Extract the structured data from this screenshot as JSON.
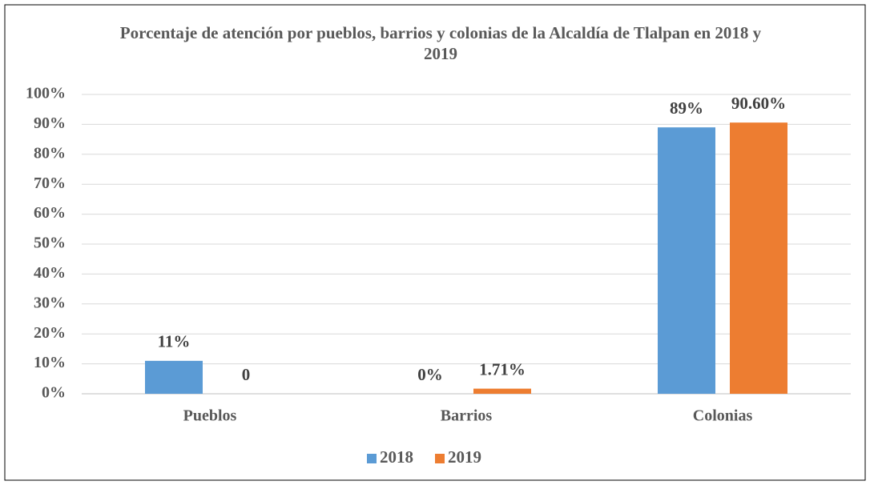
{
  "chart_data": {
    "type": "bar",
    "title": "Porcentaje de atención por pueblos, barrios y colonias de la Alcaldía de Tlalpan en 2018 y 2019",
    "categories": [
      "Pueblos",
      "Barrios",
      "Colonias"
    ],
    "series": [
      {
        "name": "2018",
        "color": "#5b9bd5",
        "values": [
          11,
          0,
          89
        ],
        "value_labels": [
          "11%",
          "0%",
          "89%"
        ]
      },
      {
        "name": "2019",
        "color": "#ed7d31",
        "values": [
          0,
          1.71,
          90.6
        ],
        "value_labels": [
          "0",
          "1.71%",
          "90.60%"
        ]
      }
    ],
    "ylim": [
      0,
      100
    ],
    "yticks": [
      {
        "value": 0,
        "label": "0%"
      },
      {
        "value": 10,
        "label": "10%"
      },
      {
        "value": 20,
        "label": "20%"
      },
      {
        "value": 30,
        "label": "30%"
      },
      {
        "value": 40,
        "label": "40%"
      },
      {
        "value": 50,
        "label": "50%"
      },
      {
        "value": 60,
        "label": "60%"
      },
      {
        "value": 70,
        "label": "70%"
      },
      {
        "value": 80,
        "label": "80%"
      },
      {
        "value": 90,
        "label": "90%"
      },
      {
        "value": 100,
        "label": "100%"
      }
    ],
    "grid": true,
    "legend": "bottom"
  }
}
